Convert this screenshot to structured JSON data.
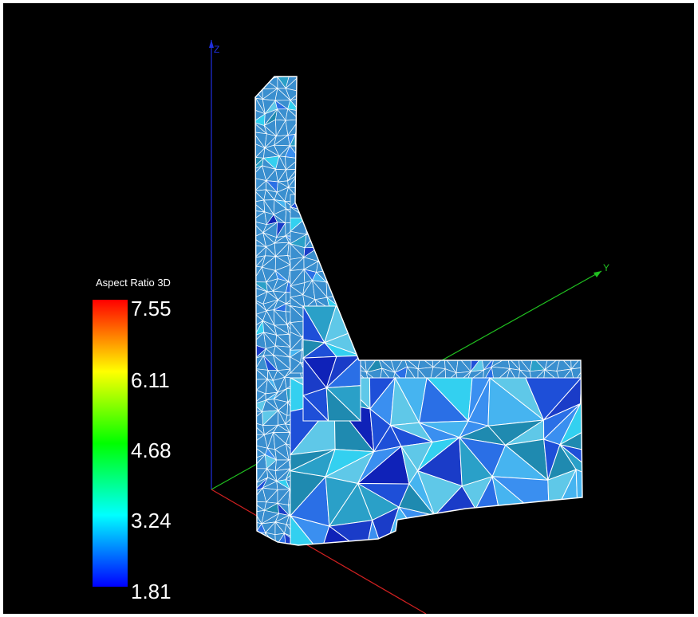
{
  "legend": {
    "title": "Aspect Ratio 3D",
    "ticks": [
      "7.55",
      "6.11",
      "4.68",
      "3.24",
      "1.81"
    ],
    "colors": [
      "#ff0000",
      "#ffff00",
      "#00ff00",
      "#00ffff",
      "#0000ff"
    ]
  },
  "axes": {
    "z_label": "Z",
    "y_label": "Y",
    "colors": {
      "x": "#d02020",
      "y": "#20c020",
      "z": "#2030e0"
    }
  },
  "mesh": {
    "edge_color": "#ffffff",
    "fill_colors": [
      "#1e4fd8",
      "#2a6fe6",
      "#3a8ff0",
      "#1a3cc8",
      "#0f22b8",
      "#46b4f0",
      "#33d0f0",
      "#2aa0c8",
      "#1f8ab0",
      "#5fc8e8"
    ]
  }
}
